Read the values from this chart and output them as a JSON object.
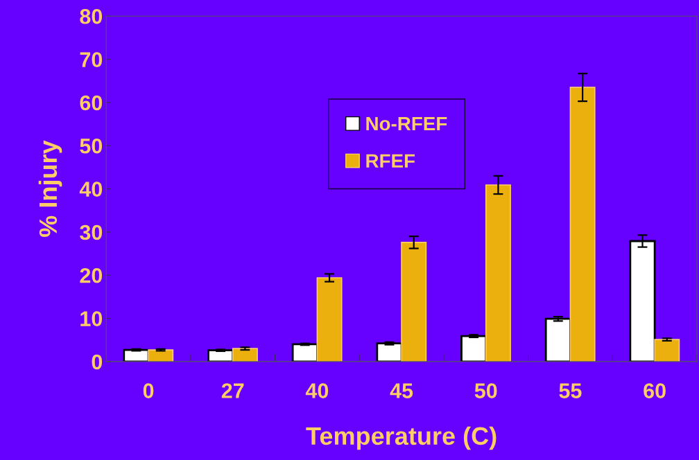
{
  "chart_data": {
    "type": "bar",
    "xlabel": "Temperature (C)",
    "ylabel": "% Injury",
    "categories": [
      "0",
      "27",
      "40",
      "45",
      "50",
      "55",
      "60"
    ],
    "series": [
      {
        "name": "No-RFEF",
        "color": "#ffffff",
        "values": [
          2.7,
          2.6,
          4.0,
          4.2,
          5.9,
          9.9,
          27.9
        ],
        "errors": [
          0.2,
          0.2,
          0.2,
          0.3,
          0.3,
          0.5,
          1.4
        ]
      },
      {
        "name": "RFEF",
        "color": "#ecb00e",
        "values": [
          2.7,
          3.0,
          19.4,
          27.6,
          40.9,
          63.5,
          5.1
        ],
        "errors": [
          0.2,
          0.3,
          0.9,
          1.4,
          2.1,
          3.2,
          0.3
        ]
      }
    ],
    "ylim": [
      0,
      80
    ],
    "yticks": [
      0,
      10,
      20,
      30,
      40,
      50,
      60,
      70,
      80
    ],
    "grid": false,
    "legend": "top"
  }
}
